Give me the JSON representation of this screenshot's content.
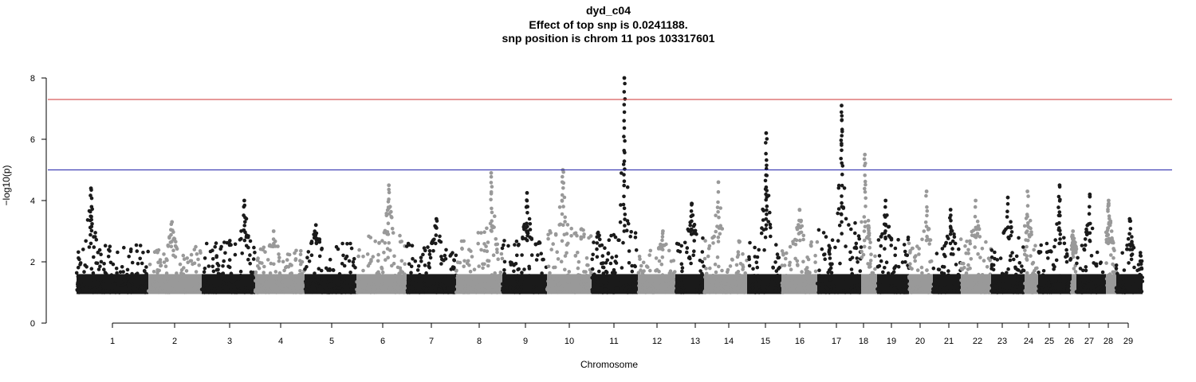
{
  "chart_data": {
    "type": "scatter",
    "title": "dyd_c04",
    "subtitle_lines": [
      "Effect of top snp is 0.0241188.",
      "snp position is chrom 11 pos 103317601"
    ],
    "xlabel": "Chromosome",
    "ylabel": "−log10(p)",
    "ylim": [
      0,
      8
    ],
    "y_ticks": [
      0,
      2,
      4,
      6,
      8
    ],
    "grid": false,
    "threshold_lines": [
      {
        "y": 7.3,
        "color": "#cd3333"
      },
      {
        "y": 5.0,
        "color": "#2222aa"
      }
    ],
    "series_colors": [
      "#1a1a1a",
      "#999999"
    ],
    "chromosomes": [
      {
        "label": "1",
        "peak": 4.4,
        "base": 2.6
      },
      {
        "label": "2",
        "peak": 3.3,
        "base": 2.5
      },
      {
        "label": "3",
        "peak": 4.0,
        "base": 2.7
      },
      {
        "label": "4",
        "peak": 3.0,
        "base": 2.5
      },
      {
        "label": "5",
        "peak": 3.2,
        "base": 2.6
      },
      {
        "label": "6",
        "peak": 4.5,
        "base": 2.9
      },
      {
        "label": "7",
        "peak": 3.4,
        "base": 2.6
      },
      {
        "label": "8",
        "peak": 4.9,
        "base": 3.0
      },
      {
        "label": "9",
        "peak": 4.25,
        "base": 2.7
      },
      {
        "label": "10",
        "peak": 5.0,
        "base": 3.2
      },
      {
        "label": "11",
        "peak": 8.0,
        "base": 3.0
      },
      {
        "label": "12",
        "peak": 3.0,
        "base": 2.4
      },
      {
        "label": "13",
        "peak": 3.9,
        "base": 2.9
      },
      {
        "label": "14",
        "peak": 4.6,
        "base": 2.8
      },
      {
        "label": "15",
        "peak": 6.2,
        "base": 2.8
      },
      {
        "label": "16",
        "peak": 3.7,
        "base": 2.7
      },
      {
        "label": "17",
        "peak": 7.1,
        "base": 3.3
      },
      {
        "label": "18",
        "peak": 5.5,
        "base": 2.7
      },
      {
        "label": "19",
        "peak": 4.0,
        "base": 2.8
      },
      {
        "label": "20",
        "peak": 4.3,
        "base": 2.7
      },
      {
        "label": "21",
        "peak": 3.7,
        "base": 2.6
      },
      {
        "label": "22",
        "peak": 4.0,
        "base": 2.8
      },
      {
        "label": "23",
        "peak": 4.1,
        "base": 2.8
      },
      {
        "label": "24",
        "peak": 4.3,
        "base": 2.7
      },
      {
        "label": "25",
        "peak": 4.5,
        "base": 2.6
      },
      {
        "label": "26",
        "peak": 3.0,
        "base": 2.3
      },
      {
        "label": "27",
        "peak": 4.2,
        "base": 2.7
      },
      {
        "label": "28",
        "peak": 4.0,
        "base": 2.6
      },
      {
        "label": "29",
        "peak": 3.4,
        "base": 2.4
      }
    ]
  }
}
